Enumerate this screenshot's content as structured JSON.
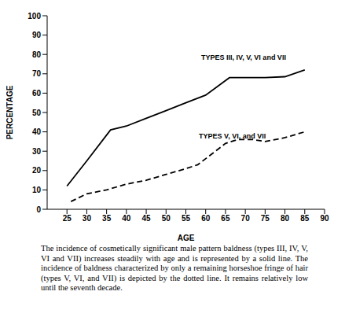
{
  "chart_data": {
    "type": "line",
    "x_label": "AGE",
    "y_label": "PERCENTAGE",
    "xlim": [
      20,
      90
    ],
    "xticks": [
      25,
      30,
      35,
      40,
      45,
      50,
      55,
      60,
      65,
      70,
      75,
      80,
      85,
      90
    ],
    "ylim": [
      0,
      100
    ],
    "yticks": [
      0,
      10,
      20,
      30,
      40,
      50,
      60,
      70,
      80,
      90,
      100
    ],
    "grid": false,
    "series": [
      {
        "name": "TYPES III, IV, V, VI and VII",
        "color": "#000000",
        "line_style": "solid",
        "x": [
          25,
          30,
          36,
          40,
          45,
          50,
          55,
          60,
          66,
          70,
          75,
          80,
          85
        ],
        "values": [
          12,
          25,
          41,
          43,
          47,
          51,
          55,
          59,
          68,
          68,
          68,
          68.5,
          72
        ]
      },
      {
        "name": "TYPES V, VI, and VII",
        "color": "#000000",
        "line_style": "dashed",
        "x": [
          26,
          30,
          35,
          40,
          45,
          50,
          55,
          58,
          65,
          68,
          72,
          75,
          80,
          85
        ],
        "values": [
          4,
          8,
          10,
          13,
          15,
          18,
          21,
          23,
          34,
          36,
          36,
          35,
          37,
          40
        ]
      }
    ],
    "caption": "The incidence of cosmetically significant male pattern baldness (types III, IV, V, VI and VII) increases steadily with age and is represented by a solid line. The incidence of baldness characterized by only a remaining horseshoe fringe of hair (types V, VI, and VII) is depicted by the dotted line. It remains relatively low until the seventh decade."
  }
}
